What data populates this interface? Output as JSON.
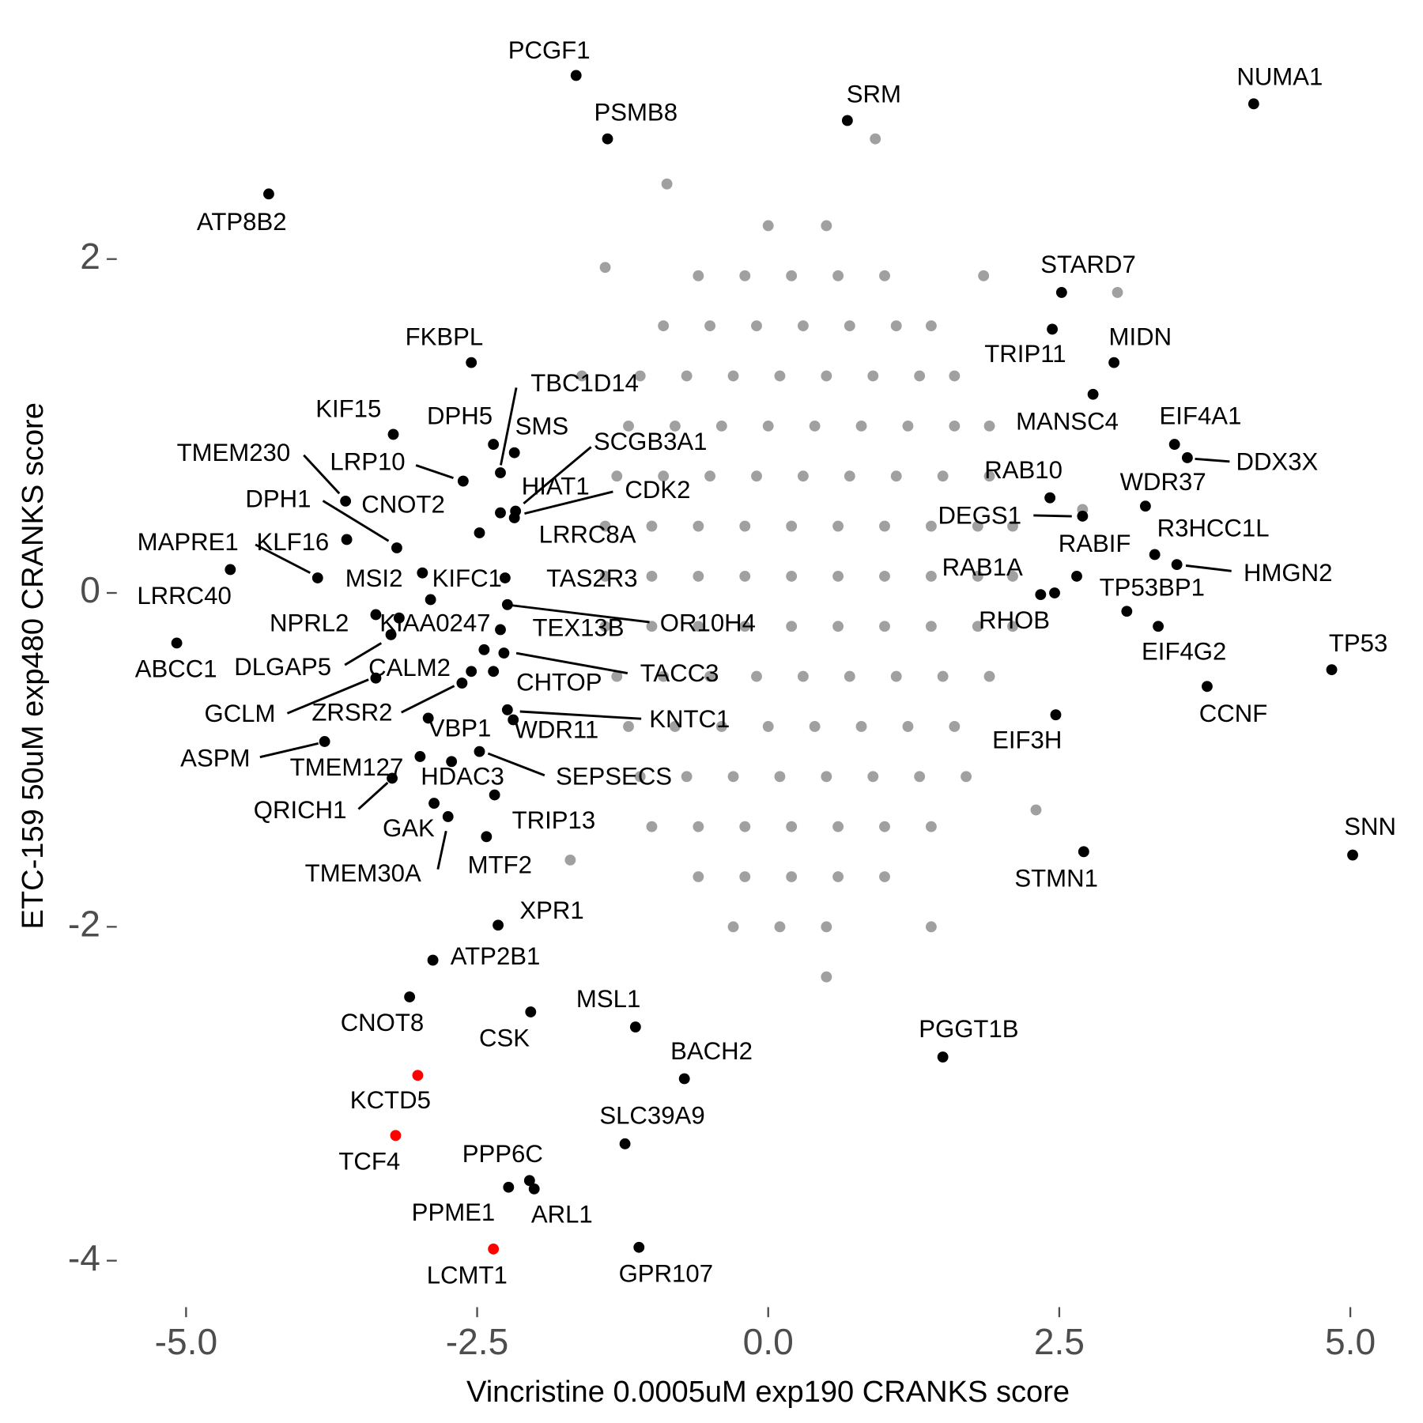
{
  "chart_data": {
    "type": "scatter",
    "x_label": "Vincristine 0.0005uM exp190 CRANKS score",
    "y_label": "ETC-159 50uM exp480 CRANKS score",
    "xlim": [
      -5.6,
      5.4
    ],
    "ylim": [
      -4.25,
      3.3
    ],
    "xticks": [
      {
        "value": -5,
        "label": "-5.0"
      },
      -2.5,
      {
        "value": 0,
        "label": "0.0"
      },
      2.5,
      {
        "value": 5,
        "label": "5.0"
      }
    ],
    "yticks": [
      -4,
      -2,
      0,
      2
    ],
    "grid": false,
    "series": [
      {
        "color": "#a0a0a0",
        "points": [
          [
            0.0,
            2.2
          ],
          [
            0.5,
            2.2
          ],
          [
            -0.6,
            1.9
          ],
          [
            -0.2,
            1.9
          ],
          [
            0.2,
            1.9
          ],
          [
            0.6,
            1.9
          ],
          [
            1.0,
            1.9
          ],
          [
            -0.9,
            1.6
          ],
          [
            -0.5,
            1.6
          ],
          [
            -0.1,
            1.6
          ],
          [
            0.3,
            1.6
          ],
          [
            0.7,
            1.6
          ],
          [
            1.1,
            1.6
          ],
          [
            1.4,
            1.6
          ],
          [
            -1.1,
            1.3
          ],
          [
            -0.7,
            1.3
          ],
          [
            -0.3,
            1.3
          ],
          [
            0.1,
            1.3
          ],
          [
            0.5,
            1.3
          ],
          [
            0.9,
            1.3
          ],
          [
            1.3,
            1.3
          ],
          [
            1.6,
            1.3
          ],
          [
            -1.2,
            1.0
          ],
          [
            -0.8,
            1.0
          ],
          [
            -0.4,
            1.0
          ],
          [
            0.0,
            1.0
          ],
          [
            0.4,
            1.0
          ],
          [
            0.8,
            1.0
          ],
          [
            1.2,
            1.0
          ],
          [
            1.6,
            1.0
          ],
          [
            1.9,
            1.0
          ],
          [
            -1.3,
            0.7
          ],
          [
            -0.9,
            0.7
          ],
          [
            -0.5,
            0.7
          ],
          [
            -0.1,
            0.7
          ],
          [
            0.3,
            0.7
          ],
          [
            0.7,
            0.7
          ],
          [
            1.1,
            0.7
          ],
          [
            1.5,
            0.7
          ],
          [
            1.9,
            0.7
          ],
          [
            -1.4,
            0.4
          ],
          [
            -1.0,
            0.4
          ],
          [
            -0.6,
            0.4
          ],
          [
            -0.2,
            0.4
          ],
          [
            0.2,
            0.4
          ],
          [
            0.6,
            0.4
          ],
          [
            1.0,
            0.4
          ],
          [
            1.4,
            0.4
          ],
          [
            1.8,
            0.4
          ],
          [
            2.1,
            0.4
          ],
          [
            -1.4,
            0.1
          ],
          [
            -1.0,
            0.1
          ],
          [
            -0.6,
            0.1
          ],
          [
            -0.2,
            0.1
          ],
          [
            0.2,
            0.1
          ],
          [
            0.6,
            0.1
          ],
          [
            1.0,
            0.1
          ],
          [
            1.4,
            0.1
          ],
          [
            1.8,
            0.1
          ],
          [
            2.1,
            0.1
          ],
          [
            -1.4,
            -0.2
          ],
          [
            -1.0,
            -0.2
          ],
          [
            -0.6,
            -0.2
          ],
          [
            -0.2,
            -0.2
          ],
          [
            0.2,
            -0.2
          ],
          [
            0.6,
            -0.2
          ],
          [
            1.0,
            -0.2
          ],
          [
            1.4,
            -0.2
          ],
          [
            1.8,
            -0.2
          ],
          [
            2.1,
            -0.2
          ],
          [
            -1.3,
            -0.5
          ],
          [
            -0.9,
            -0.5
          ],
          [
            -0.5,
            -0.5
          ],
          [
            -0.1,
            -0.5
          ],
          [
            0.3,
            -0.5
          ],
          [
            0.7,
            -0.5
          ],
          [
            1.1,
            -0.5
          ],
          [
            1.5,
            -0.5
          ],
          [
            1.9,
            -0.5
          ],
          [
            -1.2,
            -0.8
          ],
          [
            -0.8,
            -0.8
          ],
          [
            -0.4,
            -0.8
          ],
          [
            0.0,
            -0.8
          ],
          [
            0.4,
            -0.8
          ],
          [
            0.8,
            -0.8
          ],
          [
            1.2,
            -0.8
          ],
          [
            1.6,
            -0.8
          ],
          [
            -1.1,
            -1.1
          ],
          [
            -0.7,
            -1.1
          ],
          [
            -0.3,
            -1.1
          ],
          [
            0.1,
            -1.1
          ],
          [
            0.5,
            -1.1
          ],
          [
            0.9,
            -1.1
          ],
          [
            1.3,
            -1.1
          ],
          [
            1.7,
            -1.1
          ],
          [
            -1.0,
            -1.4
          ],
          [
            -0.6,
            -1.4
          ],
          [
            -0.2,
            -1.4
          ],
          [
            0.2,
            -1.4
          ],
          [
            0.6,
            -1.4
          ],
          [
            1.0,
            -1.4
          ],
          [
            1.4,
            -1.4
          ],
          [
            -0.6,
            -1.7
          ],
          [
            -0.2,
            -1.7
          ],
          [
            0.2,
            -1.7
          ],
          [
            0.6,
            -1.7
          ],
          [
            1.0,
            -1.7
          ],
          [
            -0.3,
            -2.0
          ],
          [
            0.1,
            -2.0
          ],
          [
            0.5,
            -2.0
          ],
          [
            0.92,
            2.72
          ],
          [
            -0.87,
            2.45
          ],
          [
            3.0,
            1.8
          ],
          [
            1.85,
            1.9
          ],
          [
            -1.4,
            1.95
          ],
          [
            2.7,
            0.5
          ],
          [
            -1.7,
            -1.6
          ],
          [
            0.5,
            -2.3
          ],
          [
            1.4,
            -2.0
          ],
          [
            -1.6,
            1.3
          ],
          [
            2.3,
            -1.3
          ]
        ]
      },
      {
        "color": "#000000",
        "points": [
          {
            "label": "PCGF1",
            "x": -1.65,
            "y": 3.1
          },
          {
            "label": "PSMB8",
            "x": -1.38,
            "y": 2.72
          },
          {
            "label": "SRM",
            "x": 0.68,
            "y": 2.83
          },
          {
            "label": "NUMA1",
            "x": 4.17,
            "y": 2.93
          },
          {
            "label": "ATP8B2",
            "x": -4.29,
            "y": 2.39
          },
          {
            "label": "STARD7",
            "x": 2.52,
            "y": 1.8
          },
          {
            "label": "FKBPL",
            "x": -2.55,
            "y": 1.38
          },
          {
            "label": "MIDN",
            "x": 2.97,
            "y": 1.38
          },
          {
            "label": "TRIP11",
            "x": 2.44,
            "y": 1.58
          },
          {
            "label": "MANSC4",
            "x": 2.79,
            "y": 1.19
          },
          {
            "label": "KIF15",
            "x": -3.22,
            "y": 0.95
          },
          {
            "label": "DPH5",
            "x": -2.36,
            "y": 0.89
          },
          {
            "label": "TBC1D14",
            "x": -2.3,
            "y": 0.72
          },
          {
            "label": "SMS",
            "x": -2.18,
            "y": 0.84
          },
          {
            "label": "EIF4A1",
            "x": 3.49,
            "y": 0.89
          },
          {
            "label": "DDX3X",
            "x": 3.6,
            "y": 0.81
          },
          {
            "label": "TMEM230",
            "x": -3.63,
            "y": 0.55
          },
          {
            "label": "LRP10",
            "x": -2.62,
            "y": 0.67
          },
          {
            "label": "SCGB3A1",
            "x": -2.17,
            "y": 0.49
          },
          {
            "label": "HIAT1",
            "x": -2.3,
            "y": 0.48
          },
          {
            "label": "CDK2",
            "x": -2.18,
            "y": 0.45
          },
          {
            "label": "CNOT2",
            "x": -3.62,
            "y": 0.32
          },
          {
            "label": "DPH1",
            "x": -3.19,
            "y": 0.27
          },
          {
            "label": "RAB10",
            "x": 2.42,
            "y": 0.57
          },
          {
            "label": "WDR37",
            "x": 3.24,
            "y": 0.52
          },
          {
            "label": "DEGS1",
            "x": 2.7,
            "y": 0.46
          },
          {
            "label": "LRRC8A",
            "x": -2.48,
            "y": 0.36
          },
          {
            "label": "MAPRE1",
            "x": -4.62,
            "y": 0.14
          },
          {
            "label": "KLF16",
            "x": -3.87,
            "y": 0.09
          },
          {
            "label": "RABIF",
            "x": 2.65,
            "y": 0.1
          },
          {
            "label": "R3HCC1L",
            "x": 3.32,
            "y": 0.23
          },
          {
            "label": "HMGN2",
            "x": 3.51,
            "y": 0.17
          },
          {
            "label": "RAB1A",
            "x": 2.34,
            "y": -0.01
          },
          {
            "label": "RHOB",
            "x": 2.46,
            "y": 0.0
          },
          {
            "label": "TP53BP1",
            "x": 3.08,
            "y": -0.11
          },
          {
            "label": "EIF4G2",
            "x": 3.35,
            "y": -0.2
          },
          {
            "label": "MSI2",
            "x": -2.97,
            "y": 0.12
          },
          {
            "label": "KIFC1",
            "x": -2.26,
            "y": 0.09
          },
          {
            "label": "LRRC40",
            "x": -5.08,
            "y": -0.3
          },
          {
            "label": "ABCC1",
            "x": -3.37,
            "y": -0.13
          },
          {
            "label": "DLGAP5",
            "x": -3.24,
            "y": -0.25
          },
          {
            "label": "NPRL2",
            "x": -2.9,
            "y": -0.04
          },
          {
            "label": "KIAA0247",
            "x": -3.17,
            "y": -0.15
          },
          {
            "label": "OR10H4",
            "x": -2.24,
            "y": -0.07
          },
          {
            "label": "TAS2R3",
            "x": -2.3,
            "y": -0.22
          },
          {
            "label": "TEX13B",
            "x": -2.44,
            "y": -0.34
          },
          {
            "label": "TACC3",
            "x": -2.27,
            "y": -0.36
          },
          {
            "label": "CALM2",
            "x": -2.55,
            "y": -0.47
          },
          {
            "label": "GCLM",
            "x": -3.37,
            "y": -0.51
          },
          {
            "label": "ZRSR2",
            "x": -2.63,
            "y": -0.54
          },
          {
            "label": "CHTOP",
            "x": -2.36,
            "y": -0.47
          },
          {
            "label": "KNTC1",
            "x": -2.24,
            "y": -0.7
          },
          {
            "label": "WDR11",
            "x": -2.19,
            "y": -0.76
          },
          {
            "label": "VBP1",
            "x": -2.92,
            "y": -0.75
          },
          {
            "label": "TMEM127",
            "x": -2.99,
            "y": -0.98
          },
          {
            "label": "ASPM",
            "x": -3.81,
            "y": -0.89
          },
          {
            "label": "HDAC3",
            "x": -2.72,
            "y": -1.01
          },
          {
            "label": "SEPSECS",
            "x": -2.48,
            "y": -0.95
          },
          {
            "label": "QRICH1",
            "x": -3.23,
            "y": -1.11
          },
          {
            "label": "TRIP13",
            "x": -2.35,
            "y": -1.21
          },
          {
            "label": "GAK",
            "x": -2.87,
            "y": -1.26
          },
          {
            "label": "TMEM30A",
            "x": -2.75,
            "y": -1.34
          },
          {
            "label": "MTF2",
            "x": -2.42,
            "y": -1.46
          },
          {
            "label": "SNN",
            "x": 5.02,
            "y": -1.57
          },
          {
            "label": "TP53",
            "x": 4.84,
            "y": -0.46
          },
          {
            "label": "CCNF",
            "x": 3.77,
            "y": -0.56
          },
          {
            "label": "EIF3H",
            "x": 2.47,
            "y": -0.73
          },
          {
            "label": "STMN1",
            "x": 2.71,
            "y": -1.55
          },
          {
            "label": "XPR1",
            "x": -2.32,
            "y": -1.99
          },
          {
            "label": "ATP2B1",
            "x": -2.88,
            "y": -2.2
          },
          {
            "label": "CNOT8",
            "x": -3.08,
            "y": -2.42
          },
          {
            "label": "MSL1",
            "x": -1.14,
            "y": -2.6
          },
          {
            "label": "CSK",
            "x": -2.04,
            "y": -2.51
          },
          {
            "label": "BACH2",
            "x": -0.72,
            "y": -2.91
          },
          {
            "label": "PGGT1B",
            "x": 1.5,
            "y": -2.78
          },
          {
            "label": "SLC39A9",
            "x": -1.23,
            "y": -3.3
          },
          {
            "label": "PPP6C",
            "x": -2.05,
            "y": -3.52
          },
          {
            "label": "PPME1",
            "x": -2.23,
            "y": -3.56
          },
          {
            "label": "ARL1",
            "x": -2.01,
            "y": -3.57
          },
          {
            "label": "GPR107",
            "x": -1.11,
            "y": -3.92
          }
        ]
      },
      {
        "color": "#ff0000",
        "points": [
          {
            "label": "KCTD5",
            "x": -3.01,
            "y": -2.89
          },
          {
            "label": "TCF4",
            "x": -3.2,
            "y": -3.25
          },
          {
            "label": "LCMT1",
            "x": -2.36,
            "y": -3.93
          }
        ]
      }
    ]
  }
}
